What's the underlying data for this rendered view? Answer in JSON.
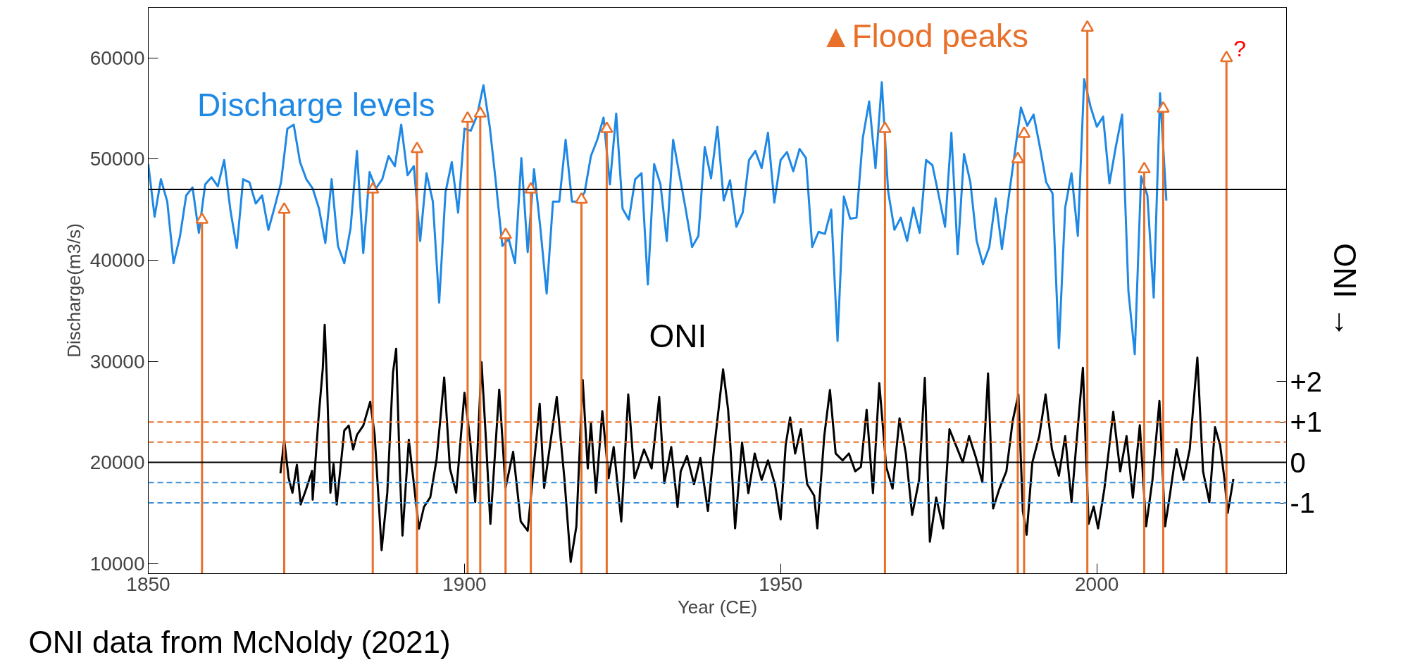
{
  "chart_data": {
    "type": "line",
    "xlabel": "Year (CE)",
    "ylabel": "Discharge(m3/s)",
    "y2label": "ONI →",
    "xlim": [
      1850,
      2030
    ],
    "xticks": [
      1850,
      1900,
      1950,
      2000
    ],
    "ylim": [
      9000,
      65000
    ],
    "yticks": [
      10000,
      20000,
      30000,
      40000,
      50000,
      60000
    ],
    "y2lim": [
      -2.75,
      11.25
    ],
    "y2ticks": [
      {
        "value": -1,
        "label": "-1"
      },
      0,
      {
        "value": 1,
        "label": "+1"
      },
      {
        "value": 2,
        "label": "+2"
      }
    ],
    "grid": false,
    "legend": false,
    "series": [
      {
        "name": "Discharge levels",
        "color": "#1e88e5",
        "x": [
          1850,
          1851,
          1852,
          1853,
          1854,
          1855,
          1856,
          1857,
          1858,
          1859,
          1860,
          1861,
          1862,
          1863,
          1864,
          1865,
          1866,
          1867,
          1868,
          1869,
          1870,
          1871,
          1872,
          1873,
          1874,
          1875,
          1876,
          1877,
          1878,
          1879,
          1880,
          1881,
          1882,
          1883,
          1884,
          1885,
          1886,
          1887,
          1888,
          1889,
          1890,
          1891,
          1892,
          1893,
          1894,
          1895,
          1896,
          1897,
          1898,
          1899,
          1900,
          1901,
          1902,
          1903,
          1904,
          1905,
          1906,
          1907,
          1908,
          1909,
          1910,
          1911,
          1912,
          1913,
          1914,
          1915,
          1916,
          1917,
          1918,
          1919,
          1920,
          1921,
          1922,
          1923,
          1924,
          1925,
          1926,
          1927,
          1928,
          1929,
          1930,
          1931,
          1932,
          1933,
          1935,
          1936,
          1937,
          1938,
          1939,
          1940,
          1941,
          1942,
          1943,
          1944,
          1945,
          1946,
          1947,
          1948,
          1949,
          1950,
          1951,
          1952,
          1953,
          1954,
          1955,
          1956,
          1957,
          1958,
          1959,
          1960,
          1961,
          1962,
          1963,
          1964,
          1965,
          1966,
          1967,
          1968,
          1969,
          1970,
          1971,
          1972,
          1973,
          1974,
          1975,
          1976,
          1977,
          1978,
          1979,
          1980,
          1981,
          1982,
          1983,
          1984,
          1985,
          1986,
          1987,
          1988,
          1989,
          1990,
          1991,
          1992,
          1993,
          1994,
          1995,
          1996,
          1997,
          1998,
          1999,
          2000,
          2001,
          2002,
          2003,
          2004,
          2005,
          2006,
          2007,
          2008,
          2009,
          2010,
          2011
        ],
        "values": [
          49500,
          44300,
          48000,
          45800,
          39700,
          42300,
          46400,
          47200,
          42700,
          47500,
          48200,
          47300,
          49900,
          44900,
          41200,
          48000,
          47700,
          45600,
          46400,
          43000,
          45300,
          47700,
          53000,
          53400,
          49700,
          48000,
          47100,
          45100,
          41700,
          48000,
          41400,
          39700,
          43200,
          50800,
          40700,
          48700,
          47100,
          48000,
          50300,
          49300,
          53400,
          48400,
          49300,
          41900,
          48600,
          45800,
          35800,
          46700,
          49700,
          44700,
          53000,
          52800,
          54300,
          57300,
          53200,
          47500,
          41400,
          42100,
          39700,
          50100,
          40800,
          49000,
          43200,
          36700,
          45800,
          45800,
          51900,
          45800,
          45800,
          46700,
          50300,
          51900,
          54100,
          47500,
          54500,
          45100,
          44000,
          48000,
          48600,
          37600,
          49500,
          47500,
          41900,
          51900,
          45000,
          41300,
          42400,
          51200,
          48100,
          53200,
          45900,
          47900,
          43300,
          44700,
          49900,
          50800,
          49100,
          52600,
          45700,
          49900,
          50700,
          48800,
          51000,
          50100,
          41300,
          42800,
          42600,
          45000,
          32000,
          46300,
          44100,
          44200,
          52100,
          55700,
          49100,
          57600,
          46800,
          43000,
          44200,
          41900,
          45200,
          42700,
          49900,
          49400,
          46400,
          43300,
          52600,
          40600,
          50500,
          47700,
          41900,
          39600,
          41300,
          46100,
          41100,
          45900,
          50500,
          55100,
          53300,
          54400,
          51200,
          47700,
          46600,
          31300,
          45200,
          48600,
          42400,
          57900,
          55200,
          53200,
          54200,
          47600,
          51200,
          54400,
          36900,
          30700,
          48300,
          46400,
          36300,
          56500,
          45900
        ]
      },
      {
        "name": "ONI",
        "axis": "y2",
        "color": "#000000",
        "x": [
          1870.9,
          1871.5,
          1872.2,
          1872.8,
          1873.5,
          1874.1,
          1874.9,
          1875.9,
          1876.0,
          1876.9,
          1877.6,
          1877.9,
          1878.3,
          1878.8,
          1879.3,
          1879.8,
          1881.0,
          1881.7,
          1882.4,
          1883.0,
          1884.0,
          1885.1,
          1885.8,
          1886.4,
          1886.9,
          1887.8,
          1888.7,
          1889.2,
          1889.8,
          1890.2,
          1891.2,
          1891.9,
          1892.8,
          1893.6,
          1894.6,
          1895.6,
          1896.8,
          1897.7,
          1898.7,
          1900.0,
          1900.9,
          1901.7,
          1902.7,
          1903.4,
          1904.1,
          1905.5,
          1906.5,
          1907.7,
          1908.9,
          1910.0,
          1911.9,
          1912.6,
          1914.6,
          1915.8,
          1916.8,
          1917.7,
          1918.7,
          1919.5,
          1920.0,
          1920.8,
          1921.8,
          1922.8,
          1923.6,
          1924.8,
          1925.9,
          1926.9,
          1928.4,
          1929.6,
          1930.8,
          1931.6,
          1932.7,
          1933.7,
          1934.2,
          1935.2,
          1936.3,
          1937.3,
          1938.5,
          1939.4,
          1940.9,
          1941.7,
          1942.3,
          1942.8,
          1943.9,
          1944.9,
          1945.9,
          1947.0,
          1948.0,
          1949.1,
          1950.0,
          1950.8,
          1951.5,
          1952.3,
          1953.2,
          1954.2,
          1955.3,
          1955.8,
          1956.9,
          1957.8,
          1958.7,
          1959.8,
          1960.8,
          1961.8,
          1962.7,
          1963.6,
          1964.6,
          1965.6,
          1966.7,
          1967.7,
          1968.8,
          1969.8,
          1970.8,
          1971.9,
          1972.8,
          1973.6,
          1974.6,
          1975.7,
          1976.7,
          1977.7,
          1978.8,
          1979.8,
          1980.9,
          1981.9,
          1982.8,
          1983.6,
          1984.6,
          1985.7,
          1986.7,
          1987.6,
          1988.3,
          1988.9,
          1989.8,
          1990.9,
          1991.9,
          1992.9,
          1994.0,
          1995.0,
          1996.0,
          1996.7,
          1997.8,
          1998.7,
          1999.5,
          2000.2,
          2001.2,
          2002.6,
          2003.7,
          2004.7,
          2005.7,
          2006.8,
          2007.8,
          2008.8,
          2009.9,
          2010.8,
          2011.6,
          2012.6,
          2013.7,
          2014.7,
          2015.9,
          2016.8,
          2017.8,
          2018.7,
          2019.5,
          2020.2,
          2020.7,
          2021.6
        ],
        "values": [
          -0.27,
          0.56,
          -0.39,
          -0.75,
          -0.06,
          -1.04,
          -0.69,
          -0.21,
          -0.92,
          1.05,
          2.33,
          3.4,
          1.8,
          -0.75,
          -0.04,
          -1.04,
          0.79,
          0.91,
          0.32,
          0.68,
          0.91,
          1.5,
          0.68,
          -0.86,
          -2.17,
          -0.75,
          2.22,
          2.81,
          -0.27,
          -1.81,
          0.56,
          -0.39,
          -1.64,
          -1.1,
          -0.86,
          0.08,
          2.1,
          -0.15,
          -0.75,
          1.72,
          0.56,
          -0.98,
          2.48,
          0.56,
          -1.52,
          1.8,
          -0.63,
          0.26,
          -1.46,
          -1.69,
          1.45,
          -0.63,
          1.62,
          -0.39,
          -2.46,
          -1.58,
          2.04,
          -0.15,
          0.97,
          -0.75,
          1.27,
          -0.39,
          0.38,
          -1.46,
          1.68,
          -0.39,
          0.32,
          -0.15,
          1.62,
          -0.51,
          0.38,
          -1.1,
          -0.22,
          0.16,
          -0.54,
          0.11,
          -1.2,
          0.22,
          2.3,
          1.3,
          -0.22,
          -1.63,
          0.49,
          -0.76,
          0.22,
          -0.43,
          0.05,
          -0.54,
          -1.41,
          0.43,
          1.11,
          0.22,
          0.82,
          -0.54,
          -0.82,
          -1.63,
          0.65,
          1.79,
          0.22,
          0.05,
          0.22,
          -0.22,
          -0.11,
          1.3,
          -0.76,
          1.96,
          -0.11,
          -0.65,
          1.09,
          0.22,
          -1.3,
          -0.43,
          2.09,
          -1.96,
          -0.87,
          -1.63,
          0.82,
          0.43,
          0,
          0.65,
          0.11,
          -0.49,
          2.2,
          -1.14,
          -0.65,
          -0.22,
          1.03,
          1.68,
          -1.2,
          -1.79,
          0,
          0.65,
          1.68,
          0.33,
          -0.33,
          0.65,
          -0.98,
          0.33,
          2.34,
          -1.52,
          -1.09,
          -1.63,
          -0.65,
          1.25,
          -0.22,
          0.65,
          -0.87,
          0.92,
          -1.58,
          -0.43,
          1.52,
          -1.58,
          -0.76,
          0.33,
          -0.43,
          0.33,
          2.59,
          -0.22,
          -0.98,
          0.87,
          0.43,
          -0.43,
          -1.25,
          -0.41
        ]
      },
      {
        "name": "▲Flood peaks",
        "type": "lollipop",
        "marker": "triangle",
        "color": "#e8702a",
        "x": [
          1858.5,
          1871.5,
          1885.5,
          1892.5,
          1900.5,
          1902.5,
          1906.5,
          1910.5,
          1918.5,
          1922.5,
          1966.5,
          1987.5,
          1988.5,
          1998.5,
          2007.5,
          2010.5,
          2020.5
        ],
        "values": [
          44000,
          45000,
          47000,
          51000,
          54000,
          54500,
          42500,
          47000,
          46000,
          53000,
          53000,
          50000,
          52500,
          63000,
          49000,
          55000,
          60000
        ]
      }
    ],
    "ref_lines": [
      {
        "axis": "y",
        "value": 47000,
        "color": "#000000",
        "line_style": "solid"
      },
      {
        "axis": "y2",
        "value": 0,
        "color": "#000000",
        "line_style": "solid"
      },
      {
        "axis": "y2",
        "value": 1,
        "color": "#e8702a",
        "line_style": "dashed"
      },
      {
        "axis": "y2",
        "value": 0.5,
        "color": "#e8702a",
        "line_style": "dashed"
      },
      {
        "axis": "y2",
        "value": -0.5,
        "color": "#3a8fd8",
        "line_style": "dashed"
      },
      {
        "axis": "y2",
        "value": -1,
        "color": "#3a8fd8",
        "line_style": "dashed"
      }
    ],
    "annotations": [
      {
        "text": "?",
        "x": 2020.5,
        "y": 60000
      },
      "ONI data from McNoldy (2021)"
    ]
  }
}
